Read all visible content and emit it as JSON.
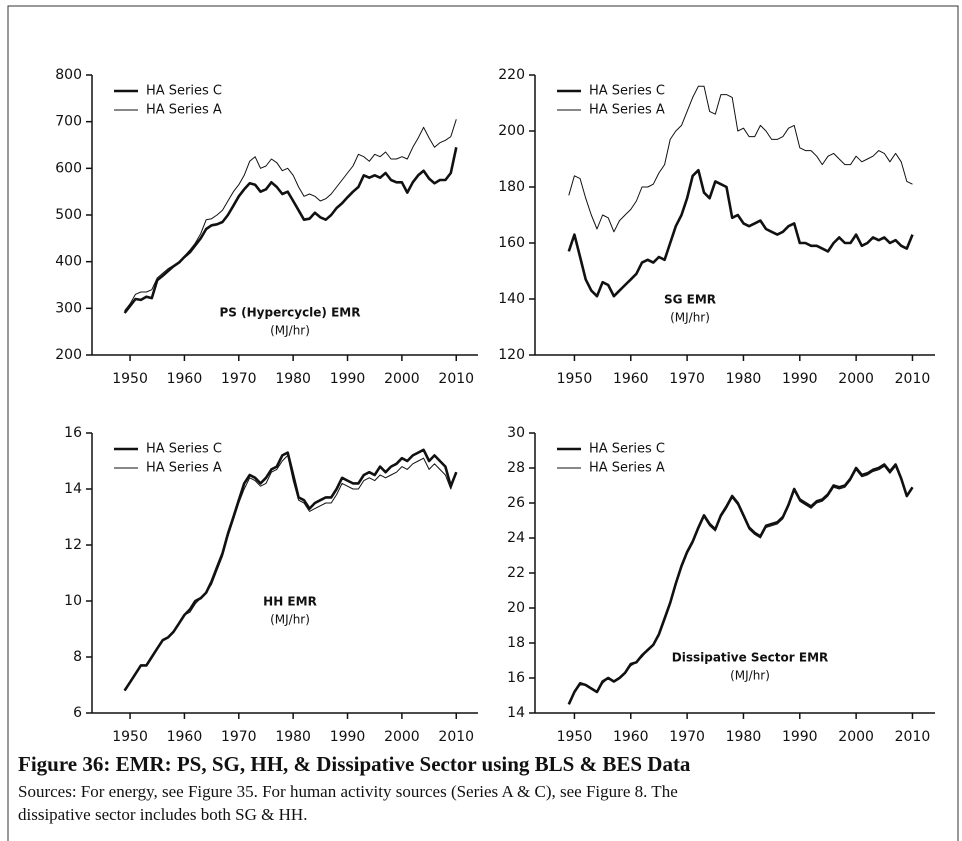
{
  "chart_data": [
    {
      "type": "line",
      "title": "PS (Hypercycle) EMR",
      "subtitle": "(MJ/hr)",
      "x": [
        1949,
        1950,
        1951,
        1952,
        1953,
        1954,
        1955,
        1956,
        1957,
        1958,
        1959,
        1960,
        1961,
        1962,
        1963,
        1964,
        1965,
        1966,
        1967,
        1968,
        1969,
        1970,
        1971,
        1972,
        1973,
        1974,
        1975,
        1976,
        1977,
        1978,
        1979,
        1980,
        1981,
        1982,
        1983,
        1984,
        1985,
        1986,
        1987,
        1988,
        1989,
        1990,
        1991,
        1992,
        1993,
        1994,
        1995,
        1996,
        1997,
        1998,
        1999,
        2000,
        2001,
        2002,
        2003,
        2004,
        2005,
        2006,
        2007,
        2008,
        2009,
        2010
      ],
      "series": [
        {
          "name": "HA Series C",
          "color": "#111111",
          "line_width": 2.6,
          "values": [
            290,
            305,
            320,
            318,
            325,
            322,
            360,
            370,
            380,
            390,
            398,
            410,
            420,
            435,
            450,
            470,
            478,
            480,
            485,
            500,
            520,
            540,
            555,
            568,
            565,
            550,
            555,
            570,
            560,
            545,
            550,
            530,
            510,
            490,
            492,
            505,
            495,
            490,
            500,
            515,
            525,
            538,
            550,
            560,
            585,
            580,
            585,
            580,
            590,
            575,
            570,
            570,
            548,
            570,
            585,
            595,
            578,
            568,
            575,
            575,
            590,
            645
          ]
        },
        {
          "name": "HA Series A",
          "color": "#111111",
          "line_width": 1,
          "values": [
            295,
            310,
            330,
            335,
            335,
            340,
            365,
            375,
            385,
            392,
            400,
            412,
            425,
            440,
            460,
            490,
            492,
            500,
            510,
            530,
            550,
            565,
            585,
            615,
            625,
            600,
            605,
            620,
            612,
            595,
            600,
            585,
            560,
            540,
            545,
            540,
            530,
            535,
            545,
            560,
            575,
            590,
            605,
            630,
            625,
            615,
            630,
            625,
            635,
            620,
            620,
            625,
            620,
            645,
            665,
            688,
            665,
            645,
            655,
            660,
            668,
            705
          ]
        }
      ],
      "xlim": [
        1943,
        2014
      ],
      "xticks": [
        1950,
        1960,
        1970,
        1980,
        1990,
        2000,
        2010
      ],
      "ylim": [
        200,
        800
      ],
      "yticks": [
        200,
        300,
        400,
        500,
        600,
        700,
        800
      ],
      "legend": "upper left"
    },
    {
      "type": "line",
      "title": "SG EMR",
      "subtitle": "(MJ/hr)",
      "x": [
        1949,
        1950,
        1951,
        1952,
        1953,
        1954,
        1955,
        1956,
        1957,
        1958,
        1959,
        1960,
        1961,
        1962,
        1963,
        1964,
        1965,
        1966,
        1967,
        1968,
        1969,
        1970,
        1971,
        1972,
        1973,
        1974,
        1975,
        1976,
        1977,
        1978,
        1979,
        1980,
        1981,
        1982,
        1983,
        1984,
        1985,
        1986,
        1987,
        1988,
        1989,
        1990,
        1991,
        1992,
        1993,
        1994,
        1995,
        1996,
        1997,
        1998,
        1999,
        2000,
        2001,
        2002,
        2003,
        2004,
        2005,
        2006,
        2007,
        2008,
        2009,
        2010
      ],
      "series": [
        {
          "name": "HA Series C",
          "color": "#111111",
          "line_width": 2.6,
          "values": [
            157,
            163,
            155,
            147,
            143,
            141,
            146,
            145,
            141,
            143,
            145,
            147,
            149,
            153,
            154,
            153,
            155,
            154,
            160,
            166,
            170,
            176,
            184,
            186,
            178,
            176,
            182,
            181,
            180,
            169,
            170,
            167,
            166,
            167,
            168,
            165,
            164,
            163,
            164,
            166,
            167,
            160,
            160,
            159,
            159,
            158,
            157,
            160,
            162,
            160,
            160,
            163,
            159,
            160,
            162,
            161,
            162,
            160,
            161,
            159,
            158,
            163
          ]
        },
        {
          "name": "HA Series A",
          "color": "#111111",
          "line_width": 1,
          "values": [
            177,
            184,
            183,
            176,
            170,
            165,
            170,
            169,
            164,
            168,
            170,
            172,
            175,
            180,
            180,
            181,
            185,
            188,
            197,
            200,
            202,
            207,
            212,
            216,
            216,
            207,
            206,
            213,
            213,
            212,
            200,
            201,
            198,
            198,
            202,
            200,
            197,
            197,
            198,
            201,
            202,
            194,
            193,
            193,
            191,
            188,
            191,
            192,
            190,
            188,
            188,
            191,
            189,
            190,
            191,
            193,
            192,
            189,
            192,
            189,
            182,
            181
          ]
        }
      ],
      "xlim": [
        1943,
        2014
      ],
      "xticks": [
        1950,
        1960,
        1970,
        1980,
        1990,
        2000,
        2010
      ],
      "ylim": [
        120,
        220
      ],
      "yticks": [
        120,
        140,
        160,
        180,
        200,
        220
      ],
      "legend": "upper left"
    },
    {
      "type": "line",
      "title": "HH EMR",
      "subtitle": "(MJ/hr)",
      "x": [
        1949,
        1950,
        1951,
        1952,
        1953,
        1954,
        1955,
        1956,
        1957,
        1958,
        1959,
        1960,
        1961,
        1962,
        1963,
        1964,
        1965,
        1966,
        1967,
        1968,
        1969,
        1970,
        1971,
        1972,
        1973,
        1974,
        1975,
        1976,
        1977,
        1978,
        1979,
        1980,
        1981,
        1982,
        1983,
        1984,
        1985,
        1986,
        1987,
        1988,
        1989,
        1990,
        1991,
        1992,
        1993,
        1994,
        1995,
        1996,
        1997,
        1998,
        1999,
        2000,
        2001,
        2002,
        2003,
        2004,
        2005,
        2006,
        2007,
        2008,
        2009,
        2010
      ],
      "series": [
        {
          "name": "HA Series C",
          "color": "#111111",
          "line_width": 2.6,
          "values": [
            6.8,
            7.1,
            7.4,
            7.7,
            7.7,
            8.0,
            8.3,
            8.6,
            8.7,
            8.9,
            9.2,
            9.5,
            9.7,
            10.0,
            10.1,
            10.3,
            10.7,
            11.2,
            11.7,
            12.4,
            13.0,
            13.6,
            14.2,
            14.5,
            14.4,
            14.2,
            14.4,
            14.7,
            14.8,
            15.2,
            15.3,
            14.5,
            13.7,
            13.6,
            13.3,
            13.5,
            13.6,
            13.7,
            13.7,
            14.0,
            14.4,
            14.3,
            14.2,
            14.2,
            14.5,
            14.6,
            14.5,
            14.8,
            14.6,
            14.8,
            14.9,
            15.1,
            15.0,
            15.2,
            15.3,
            15.4,
            15.0,
            15.2,
            15.0,
            14.8,
            14.1,
            14.6
          ]
        },
        {
          "name": "HA Series A",
          "color": "#111111",
          "line_width": 1,
          "values": [
            6.8,
            7.1,
            7.4,
            7.7,
            7.7,
            8.0,
            8.3,
            8.6,
            8.7,
            8.9,
            9.2,
            9.5,
            9.6,
            9.9,
            10.1,
            10.3,
            10.6,
            11.1,
            11.6,
            12.3,
            12.9,
            13.5,
            14.0,
            14.4,
            14.3,
            14.1,
            14.2,
            14.6,
            14.7,
            15.0,
            15.2,
            14.3,
            13.6,
            13.5,
            13.2,
            13.3,
            13.4,
            13.5,
            13.5,
            13.8,
            14.2,
            14.1,
            14.0,
            14.0,
            14.3,
            14.4,
            14.3,
            14.5,
            14.4,
            14.5,
            14.6,
            14.8,
            14.7,
            14.9,
            15.0,
            15.1,
            14.7,
            14.9,
            14.7,
            14.5,
            14.0,
            14.6
          ]
        }
      ],
      "xlim": [
        1943,
        2014
      ],
      "xticks": [
        1950,
        1960,
        1970,
        1980,
        1990,
        2000,
        2010
      ],
      "ylim": [
        6,
        16
      ],
      "yticks": [
        6,
        8,
        10,
        12,
        14,
        16
      ],
      "legend": "upper left"
    },
    {
      "type": "line",
      "title": "Dissipative Sector EMR",
      "subtitle": "(MJ/hr)",
      "x": [
        1949,
        1950,
        1951,
        1952,
        1953,
        1954,
        1955,
        1956,
        1957,
        1958,
        1959,
        1960,
        1961,
        1962,
        1963,
        1964,
        1965,
        1966,
        1967,
        1968,
        1969,
        1970,
        1971,
        1972,
        1973,
        1974,
        1975,
        1976,
        1977,
        1978,
        1979,
        1980,
        1981,
        1982,
        1983,
        1984,
        1985,
        1986,
        1987,
        1988,
        1989,
        1990,
        1991,
        1992,
        1993,
        1994,
        1995,
        1996,
        1997,
        1998,
        1999,
        2000,
        2001,
        2002,
        2003,
        2004,
        2005,
        2006,
        2007,
        2008,
        2009,
        2010
      ],
      "series": [
        {
          "name": "HA Series C",
          "color": "#111111",
          "line_width": 2.6,
          "values": [
            14.5,
            15.2,
            15.7,
            15.6,
            15.4,
            15.2,
            15.8,
            16.0,
            15.8,
            16.0,
            16.3,
            16.8,
            16.9,
            17.3,
            17.6,
            17.9,
            18.5,
            19.4,
            20.3,
            21.4,
            22.4,
            23.2,
            23.8,
            24.6,
            25.3,
            24.8,
            24.5,
            25.3,
            25.8,
            26.4,
            26.0,
            25.3,
            24.6,
            24.3,
            24.1,
            24.7,
            24.8,
            24.9,
            25.2,
            25.9,
            26.8,
            26.2,
            26.0,
            25.8,
            26.1,
            26.2,
            26.5,
            27.0,
            26.9,
            27.0,
            27.4,
            28.0,
            27.6,
            27.7,
            27.9,
            28.0,
            28.2,
            27.8,
            28.2,
            27.4,
            26.4,
            26.9
          ]
        },
        {
          "name": "HA Series A",
          "color": "#111111",
          "line_width": 1,
          "values": [
            14.5,
            15.2,
            15.6,
            15.6,
            15.4,
            15.2,
            15.7,
            16.0,
            15.8,
            16.0,
            16.3,
            16.7,
            16.9,
            17.2,
            17.6,
            17.9,
            18.4,
            19.3,
            20.2,
            21.3,
            22.3,
            23.1,
            23.7,
            24.5,
            25.2,
            24.7,
            24.4,
            25.2,
            25.7,
            26.3,
            25.9,
            25.2,
            24.5,
            24.2,
            24.0,
            24.6,
            24.7,
            24.8,
            25.1,
            25.8,
            26.7,
            26.1,
            25.9,
            25.7,
            26.0,
            26.1,
            26.4,
            26.9,
            26.8,
            26.9,
            27.3,
            27.9,
            27.5,
            27.6,
            27.8,
            27.9,
            28.1,
            27.7,
            28.1,
            27.3,
            26.4,
            26.9
          ]
        }
      ],
      "xlim": [
        1943,
        2014
      ],
      "xticks": [
        1950,
        1960,
        1970,
        1980,
        1990,
        2000,
        2010
      ],
      "ylim": [
        14,
        30
      ],
      "yticks": [
        14,
        16,
        18,
        20,
        22,
        24,
        26,
        28,
        30
      ],
      "legend": "upper left"
    }
  ],
  "caption": {
    "title": "Figure 36: EMR: PS, SG, HH, & Dissipative Sector using BLS & BES Data",
    "lines": [
      "Sources: For energy, see Figure 35. For human activity sources (Series A & C), see Figure 8. The",
      "dissipative sector includes both SG & HH."
    ]
  }
}
